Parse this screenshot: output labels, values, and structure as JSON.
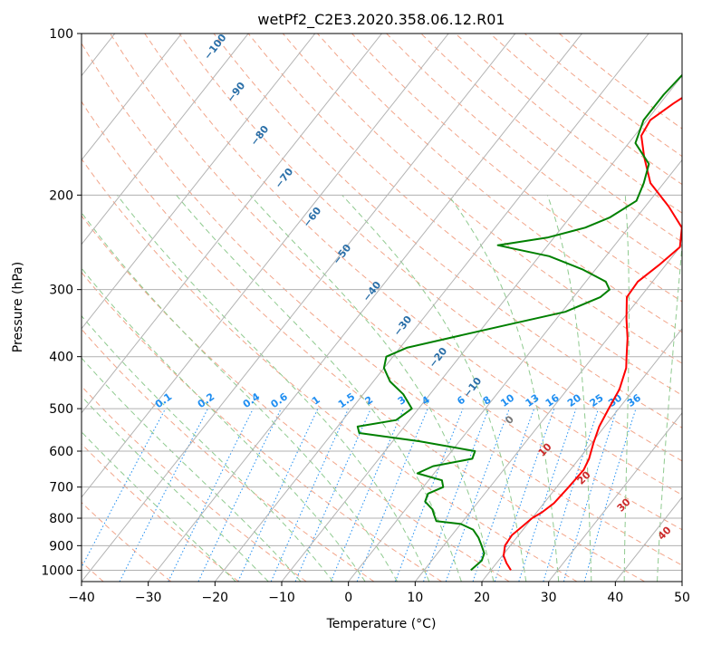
{
  "chart_data": {
    "type": "line",
    "chart_kind": "skew-T log-P diagram",
    "title": "wetPf2_C2E3.2020.358.06.12.R01",
    "xlabel": "Temperature (°C)",
    "ylabel": "Pressure (hPa)",
    "x_scale": "linear",
    "y_scale": "log (inverted)",
    "xlim": [
      -40,
      50
    ],
    "ylim": [
      1050,
      100
    ],
    "x_ticks": [
      "−40",
      "−30",
      "−20",
      "−10",
      "0",
      "10",
      "20",
      "30",
      "40",
      "50"
    ],
    "x_tick_values": [
      -40,
      -30,
      -20,
      -10,
      0,
      10,
      20,
      30,
      40,
      50
    ],
    "y_ticks": [
      "100",
      "200",
      "300",
      "400",
      "500",
      "600",
      "700",
      "800",
      "900",
      "1000"
    ],
    "y_tick_values": [
      100,
      200,
      300,
      400,
      500,
      600,
      700,
      800,
      900,
      1000
    ],
    "grid": true,
    "series": [
      {
        "color": "#ff0000",
        "points": [
          [
            1000,
            23.0
          ],
          [
            970,
            21.5
          ],
          [
            940,
            20.2
          ],
          [
            900,
            19.2
          ],
          [
            860,
            19.0
          ],
          [
            830,
            19.5
          ],
          [
            800,
            20.0
          ],
          [
            780,
            20.8
          ],
          [
            750,
            21.5
          ],
          [
            700,
            21.8
          ],
          [
            650,
            22.0
          ],
          [
            620,
            21.5
          ],
          [
            580,
            20.3
          ],
          [
            540,
            19.2
          ],
          [
            500,
            18.5
          ],
          [
            460,
            17.8
          ],
          [
            420,
            16.3
          ],
          [
            400,
            15.0
          ],
          [
            370,
            13.0
          ],
          [
            340,
            10.5
          ],
          [
            310,
            8.0
          ],
          [
            290,
            7.8
          ],
          [
            270,
            9.0
          ],
          [
            250,
            10.0
          ],
          [
            230,
            8.0
          ],
          [
            210,
            3.5
          ],
          [
            190,
            -2.0
          ],
          [
            170,
            -6.0
          ],
          [
            155,
            -9.0
          ],
          [
            145,
            -9.5
          ],
          [
            135,
            -8.0
          ],
          [
            125,
            -6.0
          ],
          [
            115,
            -4.0
          ],
          [
            105,
            -2.0
          ],
          [
            100,
            -1.0
          ]
        ]
      },
      {
        "color": "#008000",
        "points": [
          [
            1000,
            17.0
          ],
          [
            960,
            17.5
          ],
          [
            930,
            17.0
          ],
          [
            900,
            15.7
          ],
          [
            870,
            14.3
          ],
          [
            840,
            12.5
          ],
          [
            820,
            10.0
          ],
          [
            810,
            6.0
          ],
          [
            790,
            5.0
          ],
          [
            770,
            4.0
          ],
          [
            745,
            2.0
          ],
          [
            720,
            1.5
          ],
          [
            700,
            3.0
          ],
          [
            680,
            2.0
          ],
          [
            660,
            -2.5
          ],
          [
            640,
            -1.0
          ],
          [
            620,
            4.0
          ],
          [
            600,
            3.5
          ],
          [
            575,
            -6.0
          ],
          [
            555,
            -16.0
          ],
          [
            540,
            -17.0
          ],
          [
            525,
            -12.0
          ],
          [
            500,
            -11.0
          ],
          [
            470,
            -14.0
          ],
          [
            445,
            -17.5
          ],
          [
            420,
            -20.0
          ],
          [
            400,
            -21.0
          ],
          [
            385,
            -19.0
          ],
          [
            370,
            -14.0
          ],
          [
            350,
            -7.0
          ],
          [
            330,
            0.5
          ],
          [
            310,
            4.0
          ],
          [
            300,
            4.5
          ],
          [
            290,
            3.0
          ],
          [
            275,
            -2.0
          ],
          [
            260,
            -8.5
          ],
          [
            252,
            -14.5
          ],
          [
            248,
            -17.5
          ],
          [
            240,
            -11.0
          ],
          [
            230,
            -6.5
          ],
          [
            220,
            -4.0
          ],
          [
            205,
            -2.0
          ],
          [
            190,
            -3.0
          ],
          [
            175,
            -4.5
          ],
          [
            160,
            -9.0
          ],
          [
            145,
            -10.5
          ],
          [
            130,
            -10.5
          ],
          [
            118,
            -10.0
          ],
          [
            108,
            -8.5
          ],
          [
            100,
            -6.0
          ]
        ]
      }
    ],
    "dry_adiabat_labels": [
      "−100",
      "−90",
      "−80",
      "−70",
      "−60",
      "−50",
      "−40",
      "−30",
      "−20",
      "−10"
    ],
    "mixing_ratio_labels": [
      "0.1",
      "0.2",
      "0.4",
      "0.6",
      "1",
      "1.5",
      "2",
      "3",
      "4",
      "6",
      "8",
      "10",
      "13",
      "16",
      "20",
      "25",
      "30",
      "36"
    ],
    "moist_adiabat_labels": [
      "0",
      "10",
      "20",
      "30",
      "40"
    ],
    "colors": {
      "temperature": "#ff0000",
      "dewpoint": "#008000",
      "isotherm": "#b3b3b3",
      "dry_adiabat": "#f2a58a",
      "moist_adiabat": "#8fca8f",
      "mixing_ratio": "#1f8ef1",
      "dry_adiabat_label": "#2a6fa8",
      "moist_adiabat_label": "#cc2a2a",
      "zero_label": "#777777",
      "grid": "#b0b0b0"
    }
  }
}
